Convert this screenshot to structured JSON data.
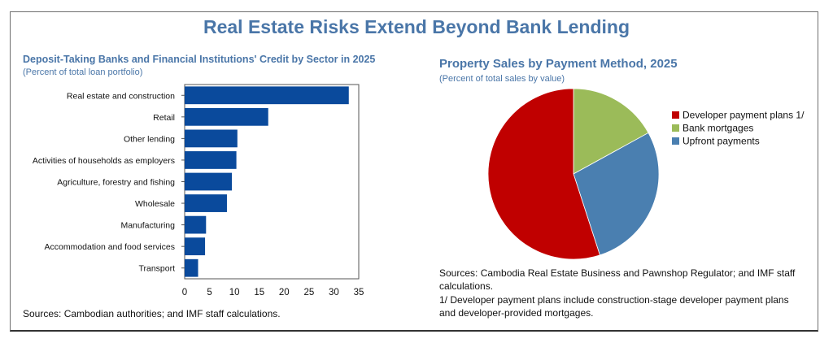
{
  "title": "Real Estate Risks Extend Beyond Bank Lending",
  "chart_data": [
    {
      "type": "bar",
      "orientation": "horizontal",
      "title": "Deposit-Taking Banks and Financial Institutions' Credit by Sector in 2025",
      "subtitle": "(Percent of total loan portfolio)",
      "categories": [
        "Real estate and construction",
        "Retail",
        "Other lending",
        "Activities of households as employers",
        "Agriculture, forestry and fishing",
        "Wholesale",
        "Manufacturing",
        "Accommodation and food services",
        "Transport"
      ],
      "values": [
        33,
        16.8,
        10.6,
        10.4,
        9.5,
        8.5,
        4.3,
        4.1,
        2.7
      ],
      "xlim": [
        0,
        35
      ],
      "xticks": [
        0,
        5,
        10,
        15,
        20,
        25,
        30,
        35
      ],
      "color": "#0a4a9c",
      "source": "Sources: Cambodian authorities; and IMF staff calculations."
    },
    {
      "type": "pie",
      "title": "Property Sales by Payment Method, 2025",
      "subtitle": "(Percent of total sales by value)",
      "labels": [
        "Developer payment plans 1/",
        "Bank mortgages",
        "Upfront payments"
      ],
      "values": [
        55,
        17,
        28
      ],
      "colors": [
        "#c00000",
        "#9bbb59",
        "#4a7fb0"
      ],
      "legend_position": "right",
      "source": "Sources: Cambodia Real Estate Business and Pawnshop Regulator; and IMF staff calculations.",
      "note": "1/ Developer payment plans include construction-stage developer payment plans and developer-provided mortgages."
    }
  ]
}
